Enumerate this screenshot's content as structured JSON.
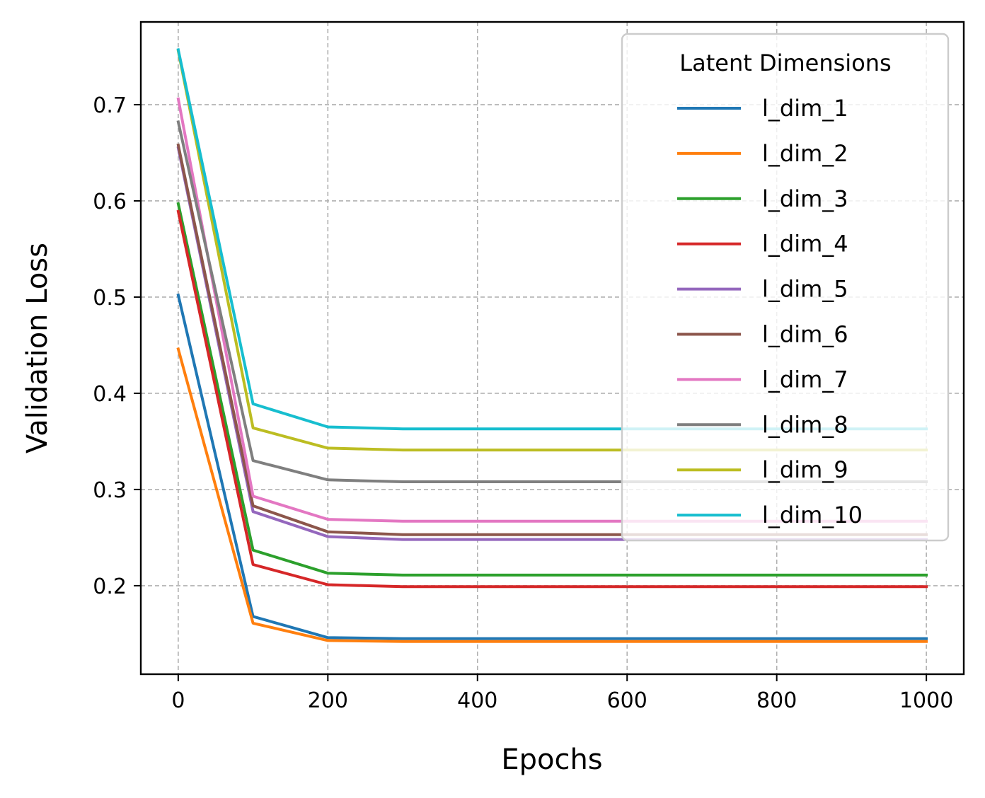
{
  "chart_data": {
    "type": "line",
    "title": "",
    "xlabel": "Epochs",
    "ylabel": "Validation Loss",
    "xlim": [
      -50,
      1050
    ],
    "ylim": [
      0.108,
      0.786
    ],
    "xticks": [
      0,
      200,
      400,
      600,
      800,
      1000
    ],
    "yticks": [
      0.2,
      0.3,
      0.4,
      0.5,
      0.6,
      0.7
    ],
    "xtick_labels": [
      "0",
      "200",
      "400",
      "600",
      "800",
      "1000"
    ],
    "ytick_labels": [
      "0.2",
      "0.3",
      "0.4",
      "0.5",
      "0.6",
      "0.7"
    ],
    "grid": true,
    "legend": {
      "title": "Latent Dimensions",
      "placement": "top-right"
    },
    "x": [
      0,
      100,
      200,
      300,
      400,
      500,
      600,
      700,
      800,
      900,
      1000
    ],
    "series": [
      {
        "name": "l_dim_1",
        "color": "#1f77b4",
        "values": [
          0.502,
          0.168,
          0.146,
          0.145,
          0.145,
          0.145,
          0.145,
          0.145,
          0.145,
          0.145,
          0.145
        ]
      },
      {
        "name": "l_dim_2",
        "color": "#ff7f0e",
        "values": [
          0.446,
          0.161,
          0.143,
          0.142,
          0.142,
          0.142,
          0.142,
          0.142,
          0.142,
          0.142,
          0.142
        ]
      },
      {
        "name": "l_dim_3",
        "color": "#2ca02c",
        "values": [
          0.597,
          0.237,
          0.213,
          0.211,
          0.211,
          0.211,
          0.211,
          0.211,
          0.211,
          0.211,
          0.211
        ]
      },
      {
        "name": "l_dim_4",
        "color": "#d62728",
        "values": [
          0.589,
          0.222,
          0.201,
          0.199,
          0.199,
          0.199,
          0.199,
          0.199,
          0.199,
          0.199,
          0.199
        ]
      },
      {
        "name": "l_dim_5",
        "color": "#9467bd",
        "values": [
          0.655,
          0.277,
          0.251,
          0.248,
          0.248,
          0.248,
          0.248,
          0.248,
          0.248,
          0.248,
          0.248
        ]
      },
      {
        "name": "l_dim_6",
        "color": "#8c564b",
        "values": [
          0.658,
          0.283,
          0.256,
          0.253,
          0.253,
          0.253,
          0.253,
          0.253,
          0.253,
          0.253,
          0.253
        ]
      },
      {
        "name": "l_dim_7",
        "color": "#e377c2",
        "values": [
          0.706,
          0.293,
          0.269,
          0.267,
          0.267,
          0.267,
          0.267,
          0.267,
          0.267,
          0.267,
          0.267
        ]
      },
      {
        "name": "l_dim_8",
        "color": "#7f7f7f",
        "values": [
          0.682,
          0.33,
          0.31,
          0.308,
          0.308,
          0.308,
          0.308,
          0.308,
          0.308,
          0.308,
          0.308
        ]
      },
      {
        "name": "l_dim_9",
        "color": "#bcbd22",
        "values": [
          0.756,
          0.364,
          0.343,
          0.341,
          0.341,
          0.341,
          0.341,
          0.341,
          0.341,
          0.341,
          0.341
        ]
      },
      {
        "name": "l_dim_10",
        "color": "#17becf",
        "values": [
          0.757,
          0.389,
          0.365,
          0.363,
          0.363,
          0.363,
          0.363,
          0.363,
          0.363,
          0.363,
          0.363
        ]
      }
    ]
  }
}
